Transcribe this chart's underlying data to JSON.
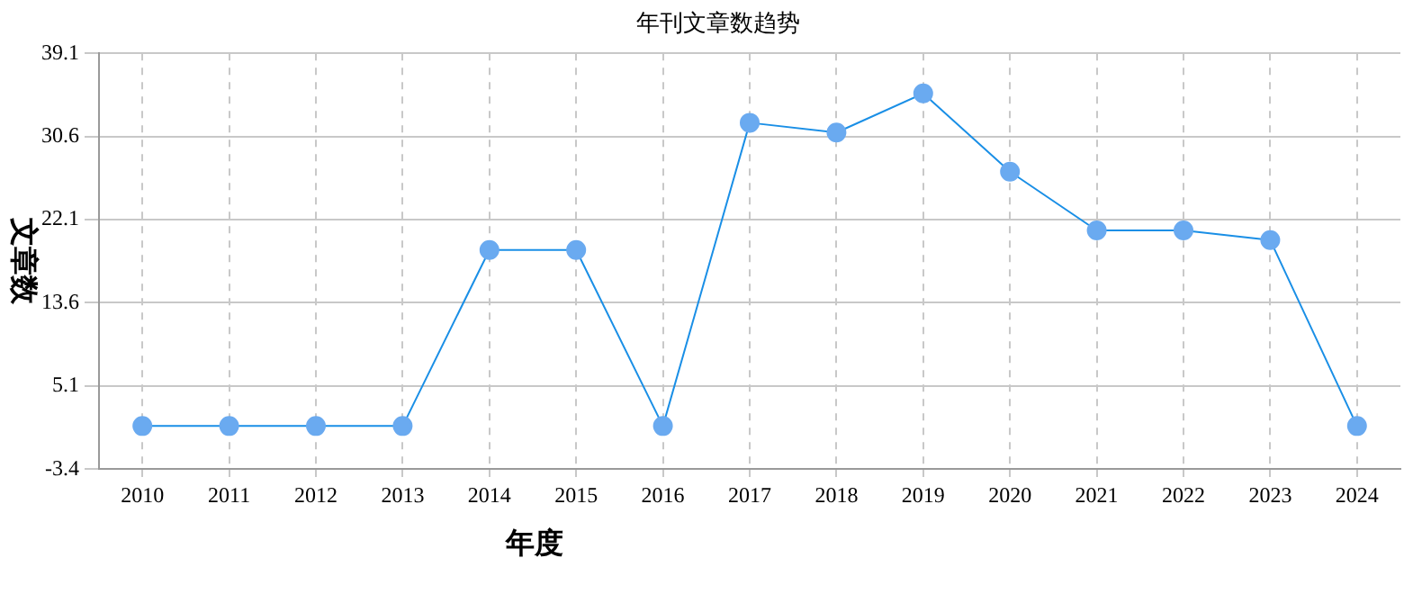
{
  "chart_data": {
    "type": "line",
    "title": "年刊文章数趋势",
    "xlabel": "年度",
    "ylabel": "文章数",
    "categories": [
      "2010",
      "2011",
      "2012",
      "2013",
      "2014",
      "2015",
      "2016",
      "2017",
      "2018",
      "2019",
      "2020",
      "2021",
      "2022",
      "2023",
      "2024"
    ],
    "series": [
      {
        "color": "#1a8fe6",
        "values": [
          1,
          1,
          1,
          1,
          19,
          19,
          1,
          32,
          31,
          35,
          27,
          21,
          21,
          20,
          1
        ]
      }
    ],
    "ylim": [
      -3.4,
      39.1
    ],
    "yticks": [
      -3.4,
      5.1,
      13.6,
      22.1,
      30.6,
      39.1
    ],
    "grid": true,
    "legend": false,
    "marker": "circle",
    "line_style": "solid"
  }
}
